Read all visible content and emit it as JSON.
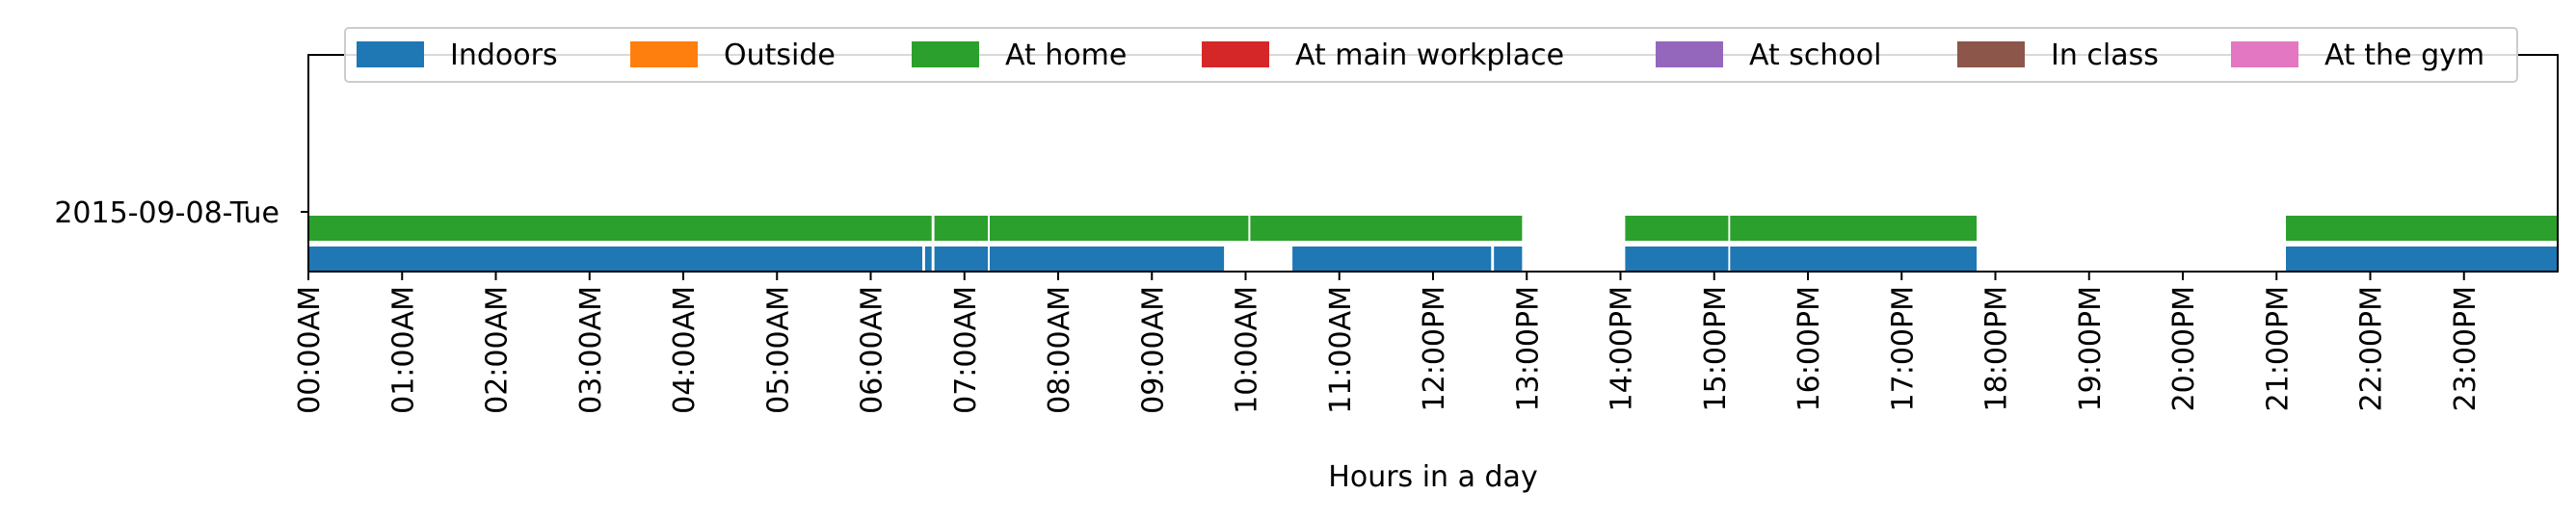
{
  "chart_data": {
    "type": "timeline",
    "xlabel": "Hours in a day",
    "xlim": [
      0,
      24
    ],
    "row_label": "2015-09-08-Tue",
    "legend": [
      {
        "name": "Indoors",
        "color": "#1f77b4"
      },
      {
        "name": "Outside",
        "color": "#ff7f0e"
      },
      {
        "name": "At home",
        "color": "#2ca02c"
      },
      {
        "name": "At main workplace",
        "color": "#d62728"
      },
      {
        "name": "At school",
        "color": "#9467bd"
      },
      {
        "name": "In class",
        "color": "#8c564b"
      },
      {
        "name": "At the gym",
        "color": "#e377c2"
      }
    ],
    "x_ticks": [
      "00:00AM",
      "01:00AM",
      "02:00AM",
      "03:00AM",
      "04:00AM",
      "05:00AM",
      "06:00AM",
      "07:00AM",
      "08:00AM",
      "09:00AM",
      "10:00AM",
      "11:00AM",
      "12:00PM",
      "13:00PM",
      "14:00PM",
      "15:00PM",
      "16:00PM",
      "17:00PM",
      "18:00PM",
      "19:00PM",
      "20:00PM",
      "21:00PM",
      "22:00PM",
      "23:00PM"
    ],
    "series": [
      {
        "name": "At home",
        "color": "#2ca02c",
        "segments": [
          [
            0,
            6.65
          ],
          [
            6.68,
            7.25
          ],
          [
            7.27,
            10.03
          ],
          [
            10.05,
            12.95
          ],
          [
            14.05,
            15.15
          ],
          [
            15.17,
            17.8
          ],
          [
            21.1,
            24.0
          ]
        ]
      },
      {
        "name": "Indoors",
        "color": "#1f77b4",
        "segments": [
          [
            0,
            6.55
          ],
          [
            6.58,
            6.65
          ],
          [
            6.68,
            7.25
          ],
          [
            7.27,
            9.77
          ],
          [
            10.5,
            12.62
          ],
          [
            12.65,
            12.95
          ],
          [
            14.05,
            15.15
          ],
          [
            15.17,
            17.8
          ],
          [
            21.1,
            24.0
          ]
        ]
      }
    ]
  }
}
